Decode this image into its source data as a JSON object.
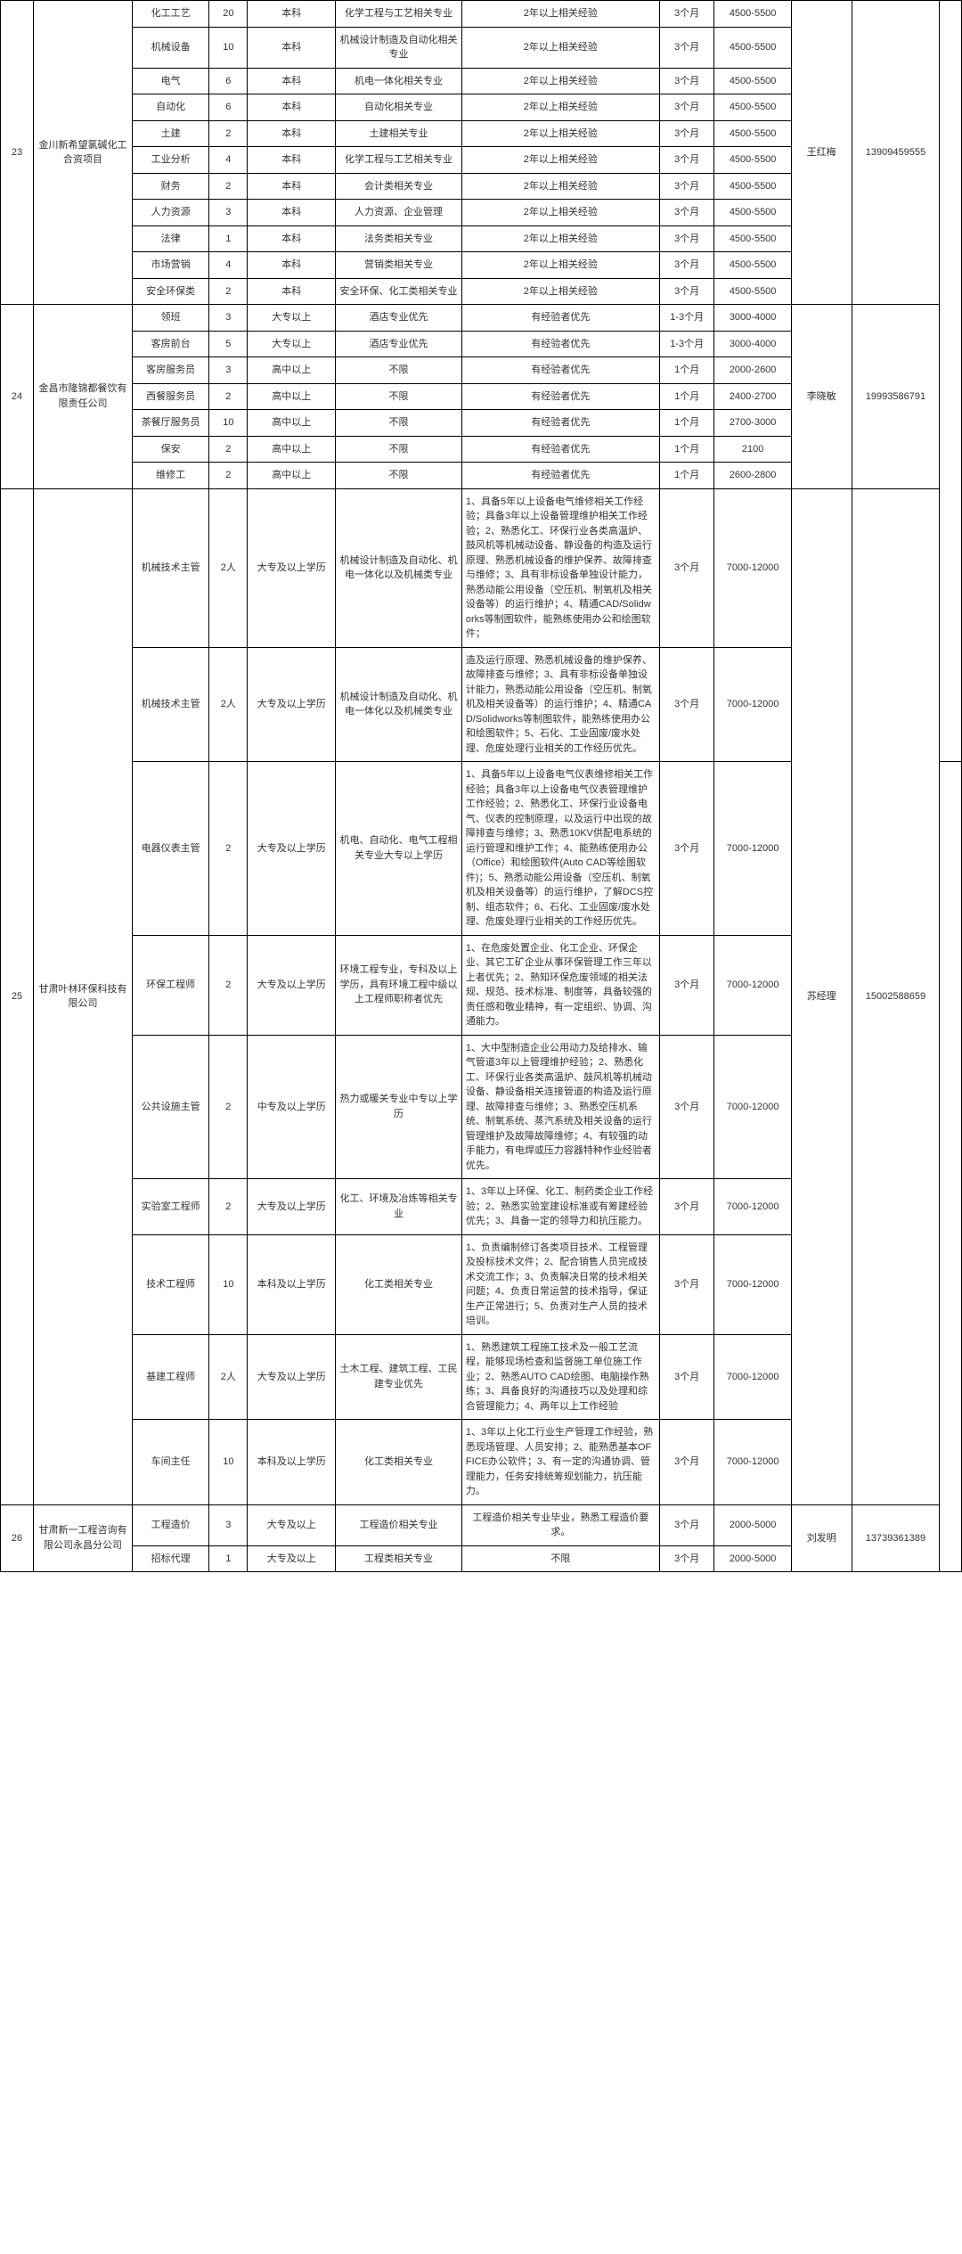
{
  "groups": [
    {
      "idx": "23",
      "company": "金川新希望氯碱化工合资项目",
      "contact": "王红梅",
      "phone": "13909459555",
      "rows": [
        {
          "pos": "化工工艺",
          "cnt": "20",
          "edu": "本科",
          "major": "化学工程与工艺相关专业",
          "req": "2年以上相关经验",
          "period": "3个月",
          "salary": "4500-5500"
        },
        {
          "pos": "机械设备",
          "cnt": "10",
          "edu": "本科",
          "major": "机械设计制造及自动化相关专业",
          "req": "2年以上相关经验",
          "period": "3个月",
          "salary": "4500-5500"
        },
        {
          "pos": "电气",
          "cnt": "6",
          "edu": "本科",
          "major": "机电一体化相关专业",
          "req": "2年以上相关经验",
          "period": "3个月",
          "salary": "4500-5500"
        },
        {
          "pos": "自动化",
          "cnt": "6",
          "edu": "本科",
          "major": "自动化相关专业",
          "req": "2年以上相关经验",
          "period": "3个月",
          "salary": "4500-5500"
        },
        {
          "pos": "土建",
          "cnt": "2",
          "edu": "本科",
          "major": "土建相关专业",
          "req": "2年以上相关经验",
          "period": "3个月",
          "salary": "4500-5500"
        },
        {
          "pos": "工业分析",
          "cnt": "4",
          "edu": "本科",
          "major": "化学工程与工艺相关专业",
          "req": "2年以上相关经验",
          "period": "3个月",
          "salary": "4500-5500"
        },
        {
          "pos": "财务",
          "cnt": "2",
          "edu": "本科",
          "major": "会计类相关专业",
          "req": "2年以上相关经验",
          "period": "3个月",
          "salary": "4500-5500"
        },
        {
          "pos": "人力资源",
          "cnt": "3",
          "edu": "本科",
          "major": "人力资源、企业管理",
          "req": "2年以上相关经验",
          "period": "3个月",
          "salary": "4500-5500"
        },
        {
          "pos": "法律",
          "cnt": "1",
          "edu": "本科",
          "major": "法务类相关专业",
          "req": "2年以上相关经验",
          "period": "3个月",
          "salary": "4500-5500"
        },
        {
          "pos": "市场营销",
          "cnt": "4",
          "edu": "本科",
          "major": "营销类相关专业",
          "req": "2年以上相关经验",
          "period": "3个月",
          "salary": "4500-5500"
        },
        {
          "pos": "安全环保类",
          "cnt": "2",
          "edu": "本科",
          "major": "安全环保、化工类相关专业",
          "req": "2年以上相关经验",
          "period": "3个月",
          "salary": "4500-5500"
        }
      ]
    },
    {
      "idx": "24",
      "company": "金昌市隆锦都餐饮有限责任公司",
      "contact": "李晓敏",
      "phone": "19993586791",
      "rows": [
        {
          "pos": "领班",
          "cnt": "3",
          "edu": "大专以上",
          "major": "酒店专业优先",
          "req": "有经验者优先",
          "period": "1-3个月",
          "salary": "3000-4000"
        },
        {
          "pos": "客房前台",
          "cnt": "5",
          "edu": "大专以上",
          "major": "酒店专业优先",
          "req": "有经验者优先",
          "period": "1-3个月",
          "salary": "3000-4000"
        },
        {
          "pos": "客房服务员",
          "cnt": "3",
          "edu": "高中以上",
          "major": "不限",
          "req": "有经验者优先",
          "period": "1个月",
          "salary": "2000-2600"
        },
        {
          "pos": "西餐服务员",
          "cnt": "2",
          "edu": "高中以上",
          "major": "不限",
          "req": "有经验者优先",
          "period": "1个月",
          "salary": "2400-2700"
        },
        {
          "pos": "茶餐厅服务员",
          "cnt": "10",
          "edu": "高中以上",
          "major": "不限",
          "req": "有经验者优先",
          "period": "1个月",
          "salary": "2700-3000"
        },
        {
          "pos": "保安",
          "cnt": "2",
          "edu": "高中以上",
          "major": "不限",
          "req": "有经验者优先",
          "period": "1个月",
          "salary": "2100"
        },
        {
          "pos": "维修工",
          "cnt": "2",
          "edu": "高中以上",
          "major": "不限",
          "req": "有经验者优先",
          "period": "1个月",
          "salary": "2600-2800"
        }
      ]
    },
    {
      "idx": "25",
      "company": "甘肃叶林环保科技有限公司",
      "contact": "苏经理",
      "phone": "15002588659",
      "rows": [
        {
          "pos": "机械技术主管",
          "cnt": "2人",
          "edu": "大专及以上学历",
          "major": "机械设计制造及自动化、机电一体化以及机械类专业",
          "req": "1、具备5年以上设备电气维修相关工作经验；具备3年以上设备管理维护相关工作经验；2、熟悉化工、环保行业各类高温炉、鼓风机等机械动设备、静设备的构造及运行原理、熟悉机械设备的维护保养、故障排查与维修；3、具有非标设备单独设计能力，熟悉动能公用设备（空压机、制氧机及相关设备等）的运行维护；4、精通CAD/Solidworks等制图软件，能熟练使用办公和绘图软件；",
          "period": "3个月",
          "salary": "7000-12000"
        },
        {
          "pos": "机械技术主管",
          "cnt": "2人",
          "edu": "大专及以上学历",
          "major": "机械设计制造及自动化、机电一体化以及机械类专业",
          "req": "造及运行原理、熟悉机械设备的维护保养、故障排查与维修；3、具有非标设备单独设计能力，熟悉动能公用设备（空压机、制氧机及相关设备等）的运行维护；4、精通CAD/Solidworks等制图软件，能熟练使用办公和绘图软件；5、石化、工业固废/废水处理、危废处理行业相关的工作经历优先。",
          "period": "3个月",
          "salary": "7000-12000"
        },
        {
          "pos": "电器仪表主管",
          "cnt": "2",
          "edu": "大专及以上学历",
          "major": "机电、自动化、电气工程相关专业大专以上学历",
          "req": "1、具备5年以上设备电气仪表维修相关工作经验；具备3年以上设备电气仪表管理维护工作经验；2、熟悉化工、环保行业设备电气、仪表的控制原理，以及运行中出现的故障排查与维修；3、熟悉10KV供配电系统的运行管理和维护工作；4、能熟练使用办公（Office）和绘图软件(Auto CAD等绘图软件)；5、熟悉动能公用设备（空压机、制氧机及相关设备等）的运行维护，了解DCS控制、组态软件；6、石化、工业固废/废水处理、危废处理行业相关的工作经历优先。",
          "period": "3个月",
          "salary": "7000-12000"
        },
        {
          "pos": "环保工程师",
          "cnt": "2",
          "edu": "大专及以上学历",
          "major": "环境工程专业，专科及以上学历，具有环境工程中级以上工程师职称者优先",
          "req": "1、在危废处置企业、化工企业、环保企业、其它工矿企业从事环保管理工作三年以上者优先；2、熟知环保危废领域的相关法规、规范、技术标准、制度等，具备较强的责任感和敬业精神，有一定组织、协调、沟通能力。",
          "period": "3个月",
          "salary": "7000-12000"
        },
        {
          "pos": "公共设施主管",
          "cnt": "2",
          "edu": "中专及以上学历",
          "major": "热力或暖关专业中专以上学历",
          "req": "1、大中型制造企业公用动力及给排水、输气管道3年以上管理维护经验；2、熟悉化工、环保行业各类高温炉、鼓风机等机械动设备、静设备相关连接管道的构造及运行原理、故障排查与维修；3、熟悉空压机系统、制氧系统、蒸汽系统及相关设备的运行管理维护及故障故障维修；4、有较强的动手能力，有电焊或压力容器特种作业经验者优先。",
          "period": "3个月",
          "salary": "7000-12000"
        },
        {
          "pos": "实验室工程师",
          "cnt": "2",
          "edu": "大专及以上学历",
          "major": "化工、环境及冶炼等相关专业",
          "req": "1、3年以上环保、化工、制药类企业工作经验；2、熟悉实验室建设标准或有筹建经验优先；3、具备一定的领导力和抗压能力。",
          "period": "3个月",
          "salary": "7000-12000"
        },
        {
          "pos": "技术工程师",
          "cnt": "10",
          "edu": "本科及以上学历",
          "major": "化工类相关专业",
          "req": "1、负责编制修订各类项目技术、工程管理及投标技术文件；2、配合销售人员完成技术交流工作；3、负责解决日常的技术相关问题；4、负责日常运营的技术指导，保证生产正常进行；5、负责对生产人员的技术培训。",
          "period": "3个月",
          "salary": "7000-12000"
        },
        {
          "pos": "基建工程师",
          "cnt": "2人",
          "edu": "大专及以上学历",
          "major": "土木工程、建筑工程、工民建专业优先",
          "req": "1、熟悉建筑工程施工技术及一般工艺流程，能够现场检查和监督施工单位施工作业；2、熟悉AUTO CAD绘图、电脑操作熟练；3、具备良好的沟通技巧以及处理和综合管理能力；4、两年以上工作经验",
          "period": "3个月",
          "salary": "7000-12000"
        },
        {
          "pos": "车间主任",
          "cnt": "10",
          "edu": "本科及以上学历",
          "major": "化工类相关专业",
          "req": "1、3年以上化工行业生产管理工作经验，熟悉现场管理、人员安排；2、能熟悉基本OFFICE办公软件；3、有一定的沟通协调、管理能力，任务安排统筹规划能力，抗压能力。",
          "period": "3个月",
          "salary": "7000-12000"
        }
      ]
    },
    {
      "idx": "26",
      "company": "甘肃新一工程咨询有限公司永昌分公司",
      "contact": "刘发明",
      "phone": "13739361389",
      "rows": [
        {
          "pos": "工程造价",
          "cnt": "3",
          "edu": "大专及以上",
          "major": "工程造价相关专业",
          "req": "工程造价相关专业毕业，熟悉工程造价要求。",
          "period": "3个月",
          "salary": "2000-5000"
        },
        {
          "pos": "招标代理",
          "cnt": "1",
          "edu": "大专及以上",
          "major": "工程类相关专业",
          "req": "不限",
          "period": "3个月",
          "salary": "2000-5000"
        }
      ]
    }
  ],
  "extra_cells": {
    "row0_open": true,
    "row3_open": true
  }
}
